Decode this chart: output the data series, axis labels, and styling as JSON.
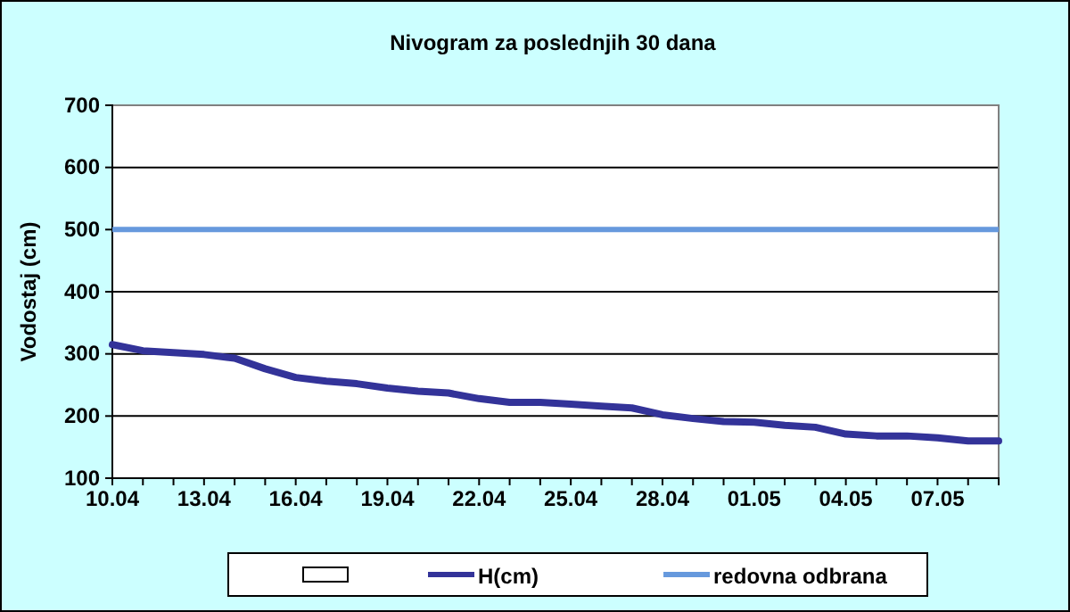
{
  "chart_data": {
    "type": "line",
    "title": "Nivogram za poslednjih 30 dana",
    "ylabel": "Vodostaj (cm)",
    "categories": [
      "10.04",
      null,
      null,
      "13.04",
      null,
      null,
      "16.04",
      null,
      null,
      "19.04",
      null,
      null,
      "22.04",
      null,
      null,
      "25.04",
      null,
      null,
      "28.04",
      null,
      null,
      "01.05",
      null,
      null,
      "04.05",
      null,
      null,
      "07.05",
      null,
      null
    ],
    "series": [
      {
        "name": "H(cm)",
        "color": "#333399",
        "values": [
          315,
          305,
          302,
          299,
          293,
          276,
          262,
          256,
          252,
          245,
          240,
          237,
          228,
          222,
          222,
          219,
          216,
          213,
          202,
          196,
          191,
          190,
          185,
          182,
          171,
          168,
          168,
          165,
          160,
          160
        ]
      }
    ],
    "ylim": [
      100,
      700
    ],
    "yticks": [
      100,
      200,
      300,
      400,
      500,
      600,
      700
    ],
    "grid": "y",
    "legend": "bottom",
    "marker": "none",
    "line_style": "solid",
    "ref_lines": [
      {
        "axis": "y",
        "value": 500,
        "label": "redovna odbrana",
        "color": "#6699dd"
      }
    ]
  }
}
